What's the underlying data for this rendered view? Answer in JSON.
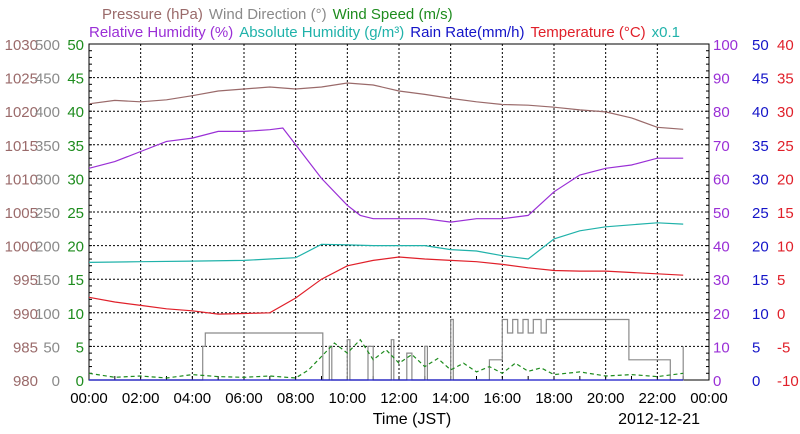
{
  "chart_data": {
    "type": "line",
    "date_label": "2012-12-21",
    "xlabel": "Time (JST)",
    "x_ticks": [
      "00:00",
      "02:00",
      "04:00",
      "06:00",
      "08:00",
      "10:00",
      "12:00",
      "14:00",
      "16:00",
      "18:00",
      "20:00",
      "22:00",
      "00:00"
    ],
    "x_range_hours": [
      0,
      24
    ],
    "legend_line1": [
      {
        "text": "Pressure (hPa)",
        "color": "#9a6a6a"
      },
      {
        "text": "Wind Direction (°)",
        "color": "#8a8a8a"
      },
      {
        "text": "Wind Speed (m/s)",
        "color": "#1e8c1e"
      }
    ],
    "legend_line2": [
      {
        "text": "Relative Humidity (%)",
        "color": "#9a2fd6"
      },
      {
        "text": "Absolute Humidity (g/m³)",
        "color": "#20b2aa"
      },
      {
        "text": "Rain Rate(mm/h)",
        "color": "#1414c8"
      },
      {
        "text": "Temperature (°C)",
        "color": "#e0202a"
      },
      {
        "text": "x0.1",
        "color": "#20b2aa"
      }
    ],
    "axes": {
      "pressure": {
        "color": "#9a6a6a",
        "ticks": [
          "1030",
          "1025",
          "1020",
          "1015",
          "1010",
          "1005",
          "1000",
          "995",
          "990",
          "985",
          "980"
        ],
        "range": [
          980,
          1030
        ]
      },
      "wind_direction": {
        "color": "#8a8a8a",
        "ticks": [
          "500",
          "450",
          "400",
          "350",
          "300",
          "250",
          "200",
          "150",
          "100",
          "50",
          "0"
        ],
        "range": [
          0,
          500
        ]
      },
      "wind_speed": {
        "color": "#1e8c1e",
        "ticks": [
          "50",
          "45",
          "40",
          "35",
          "30",
          "25",
          "20",
          "15",
          "10",
          "5",
          "0"
        ],
        "range": [
          0,
          50
        ]
      },
      "humidity": {
        "color": "#9a2fd6",
        "ticks": [
          "100",
          "90",
          "80",
          "70",
          "60",
          "50",
          "40",
          "30",
          "20",
          "10",
          "0"
        ],
        "range": [
          0,
          100
        ]
      },
      "rain_rate": {
        "color": "#1414c8",
        "ticks": [
          "50",
          "45",
          "40",
          "35",
          "30",
          "25",
          "20",
          "15",
          "10",
          "5",
          "0"
        ],
        "range": [
          0,
          50
        ]
      },
      "temperature": {
        "color": "#e0202a",
        "ticks": [
          "40",
          "35",
          "30",
          "25",
          "20",
          "15",
          "10",
          "5",
          "0",
          "-5",
          "-10"
        ],
        "range": [
          -10,
          40
        ]
      }
    },
    "series": [
      {
        "key": "pressure",
        "color": "#9a6a6a",
        "axis": "pressure",
        "points": [
          [
            0,
            1021.1
          ],
          [
            1,
            1021.6
          ],
          [
            2,
            1021.4
          ],
          [
            3,
            1021.7
          ],
          [
            4,
            1022.3
          ],
          [
            5,
            1023.0
          ],
          [
            6,
            1023.3
          ],
          [
            7,
            1023.6
          ],
          [
            8,
            1023.3
          ],
          [
            9,
            1023.6
          ],
          [
            10,
            1024.2
          ],
          [
            11,
            1023.9
          ],
          [
            12,
            1023.0
          ],
          [
            13,
            1022.5
          ],
          [
            14,
            1021.9
          ],
          [
            15,
            1021.4
          ],
          [
            16,
            1021.0
          ],
          [
            17,
            1020.9
          ],
          [
            18,
            1020.6
          ],
          [
            19,
            1020.2
          ],
          [
            20,
            1019.9
          ],
          [
            21,
            1019.0
          ],
          [
            22,
            1017.6
          ],
          [
            23,
            1017.3
          ]
        ]
      },
      {
        "key": "relative_humidity",
        "color": "#9a2fd6",
        "axis": "humidity",
        "points": [
          [
            0,
            63
          ],
          [
            1,
            65
          ],
          [
            2,
            68
          ],
          [
            3,
            71
          ],
          [
            4,
            72
          ],
          [
            5,
            74
          ],
          [
            6,
            74
          ],
          [
            7,
            74.5
          ],
          [
            7.5,
            75
          ],
          [
            8,
            70
          ],
          [
            9,
            60
          ],
          [
            10,
            52
          ],
          [
            10.5,
            49
          ],
          [
            11,
            48
          ],
          [
            12,
            48
          ],
          [
            13,
            48
          ],
          [
            14,
            47
          ],
          [
            15,
            48
          ],
          [
            16,
            48
          ],
          [
            17,
            49
          ],
          [
            18,
            56
          ],
          [
            19,
            61
          ],
          [
            20,
            63
          ],
          [
            21,
            64
          ],
          [
            22,
            66
          ],
          [
            23,
            66
          ]
        ]
      },
      {
        "key": "absolute_humidity",
        "color": "#20b2aa",
        "axis": "wind_speed",
        "points": [
          [
            0,
            17.5
          ],
          [
            2,
            17.6
          ],
          [
            4,
            17.7
          ],
          [
            6,
            17.8
          ],
          [
            7,
            18.0
          ],
          [
            8,
            18.2
          ],
          [
            9,
            20.2
          ],
          [
            10,
            20.1
          ],
          [
            11,
            20.0
          ],
          [
            12,
            20.0
          ],
          [
            13,
            20.0
          ],
          [
            14,
            19.4
          ],
          [
            15,
            19.2
          ],
          [
            16,
            18.5
          ],
          [
            17,
            18.0
          ],
          [
            18,
            21.0
          ],
          [
            19,
            22.2
          ],
          [
            20,
            22.8
          ],
          [
            21,
            23.1
          ],
          [
            22,
            23.4
          ],
          [
            23,
            23.2
          ]
        ]
      },
      {
        "key": "temperature",
        "color": "#e0202a",
        "axis": "temperature",
        "points": [
          [
            0,
            2.3
          ],
          [
            1,
            1.6
          ],
          [
            2,
            1.1
          ],
          [
            3,
            0.6
          ],
          [
            4,
            0.3
          ],
          [
            5,
            -0.2
          ],
          [
            6,
            -0.1
          ],
          [
            7,
            0.0
          ],
          [
            8,
            2.2
          ],
          [
            9,
            5.0
          ],
          [
            10,
            7.0
          ],
          [
            11,
            7.8
          ],
          [
            12,
            8.3
          ],
          [
            13,
            8.0
          ],
          [
            14,
            7.8
          ],
          [
            15,
            7.6
          ],
          [
            16,
            7.2
          ],
          [
            17,
            6.7
          ],
          [
            18,
            6.3
          ],
          [
            19,
            6.2
          ],
          [
            20,
            6.2
          ],
          [
            21,
            6.0
          ],
          [
            22,
            5.8
          ],
          [
            23,
            5.6
          ]
        ]
      },
      {
        "key": "wind_direction",
        "color": "#8a8a8a",
        "axis": "wind_direction",
        "step": true,
        "points": [
          [
            0,
            0
          ],
          [
            4.4,
            50
          ],
          [
            4.5,
            70
          ],
          [
            9,
            70
          ],
          [
            9.05,
            0
          ],
          [
            9.3,
            50
          ],
          [
            9.4,
            0
          ],
          [
            10,
            60
          ],
          [
            10.1,
            0
          ],
          [
            10.8,
            50
          ],
          [
            11,
            0
          ],
          [
            11.7,
            60
          ],
          [
            11.8,
            0
          ],
          [
            12.3,
            40
          ],
          [
            12.5,
            0
          ],
          [
            13,
            50
          ],
          [
            13.1,
            0
          ],
          [
            14,
            90
          ],
          [
            14.1,
            0
          ],
          [
            15.5,
            30
          ],
          [
            16,
            90
          ],
          [
            16.2,
            70
          ],
          [
            16.4,
            90
          ],
          [
            16.6,
            70
          ],
          [
            16.8,
            90
          ],
          [
            17,
            70
          ],
          [
            17.2,
            90
          ],
          [
            17.5,
            70
          ],
          [
            17.7,
            90
          ],
          [
            18,
            90
          ],
          [
            20.8,
            90
          ],
          [
            20.9,
            30
          ],
          [
            22,
            30
          ],
          [
            22.5,
            0
          ],
          [
            23,
            50
          ]
        ]
      },
      {
        "key": "wind_speed",
        "color": "#1e8c1e",
        "axis": "wind_speed",
        "dashed": true,
        "points": [
          [
            0,
            1.0
          ],
          [
            1,
            0.4
          ],
          [
            2,
            0.6
          ],
          [
            3,
            0.3
          ],
          [
            4,
            0.8
          ],
          [
            5,
            0.5
          ],
          [
            6,
            0.4
          ],
          [
            7,
            0.6
          ],
          [
            8,
            0.3
          ],
          [
            8.5,
            1.5
          ],
          [
            9,
            3.5
          ],
          [
            9.5,
            5.5
          ],
          [
            10,
            4.0
          ],
          [
            10.5,
            6.0
          ],
          [
            11,
            3.0
          ],
          [
            11.5,
            4.5
          ],
          [
            12,
            2.5
          ],
          [
            12.5,
            3.8
          ],
          [
            13,
            2.0
          ],
          [
            13.5,
            3.2
          ],
          [
            14,
            1.5
          ],
          [
            14.5,
            2.5
          ],
          [
            15,
            1.2
          ],
          [
            15.5,
            2.0
          ],
          [
            16,
            1.0
          ],
          [
            16.5,
            2.5
          ],
          [
            17,
            1.3
          ],
          [
            17.5,
            1.8
          ],
          [
            18,
            0.8
          ],
          [
            19,
            1.2
          ],
          [
            20,
            0.6
          ],
          [
            21,
            0.8
          ],
          [
            22,
            0.5
          ],
          [
            23,
            1.0
          ]
        ]
      },
      {
        "key": "rain_rate",
        "color": "#1414c8",
        "axis": "rain_rate",
        "points": [
          [
            0,
            0
          ],
          [
            23,
            0
          ]
        ]
      }
    ]
  }
}
